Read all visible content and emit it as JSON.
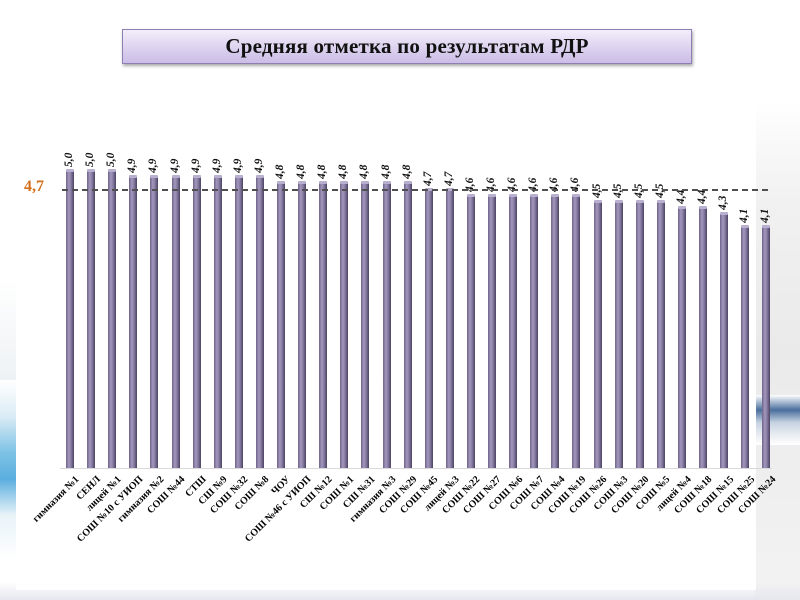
{
  "title": "Средняя отметка по результатам РДР",
  "average": {
    "label": "4,7",
    "value": 4.7,
    "color": "#d2701e"
  },
  "colors": {
    "bar": "#8a7fa6",
    "title_bg": "#ddd2ef",
    "title_border": "#8d7fb1",
    "avg_line": "#505050"
  },
  "chart_data": {
    "type": "bar",
    "title": "Средняя отметка по результатам РДР",
    "xlabel": "",
    "ylabel": "",
    "ylim": [
      0.2,
      5.0
    ],
    "grid": false,
    "legend": null,
    "reference_line": {
      "value": 4.7,
      "label": "4,7",
      "style": "dashed"
    },
    "categories": [
      "гимназия №1",
      "СЕНЛ",
      "лицей №1",
      "СОШ №10 с УИОП",
      "гимназия №2",
      "СОШ №44",
      "СТШ",
      "СШ №9",
      "СОШ №32",
      "СОШ №8",
      "ЧОУ",
      "СОШ №46 с УИОП",
      "СШ №12",
      "СОШ №1",
      "СШ №31",
      "гимназия №3",
      "СОШ №29",
      "СОШ №45",
      "лицей №3",
      "СОШ №22",
      "СОШ №27",
      "СОШ №6",
      "СОШ №7",
      "СОШ №4",
      "СОШ №19",
      "СОШ №26",
      "СОШ №3",
      "СОШ №20",
      "СОШ №5",
      "лицей №4",
      "СОШ №18",
      "СОШ №15",
      "СОШ №25",
      "СОШ №24"
    ],
    "values": [
      5.0,
      5.0,
      5.0,
      4.9,
      4.9,
      4.9,
      4.9,
      4.9,
      4.9,
      4.9,
      4.8,
      4.8,
      4.8,
      4.8,
      4.8,
      4.8,
      4.8,
      4.7,
      4.7,
      4.6,
      4.6,
      4.6,
      4.6,
      4.6,
      4.6,
      4.5,
      4.5,
      4.5,
      4.5,
      4.4,
      4.4,
      4.3,
      4.1,
      4.1
    ],
    "value_labels": [
      "5,0",
      "5,0",
      "5,0",
      "4,9",
      "4,9",
      "4,9",
      "4,9",
      "4,9",
      "4,9",
      "4,9",
      "4,8",
      "4,8",
      "4,8",
      "4,8",
      "4,8",
      "4,8",
      "4,8",
      "4,7",
      "4,7",
      "4,6",
      "4,6",
      "4,6",
      "4,6",
      "4,6",
      "4,6",
      "4,5",
      "4,5",
      "4,5",
      "4,5",
      "4,4",
      "4,4",
      "4,3",
      "4,1",
      "4,1"
    ]
  }
}
